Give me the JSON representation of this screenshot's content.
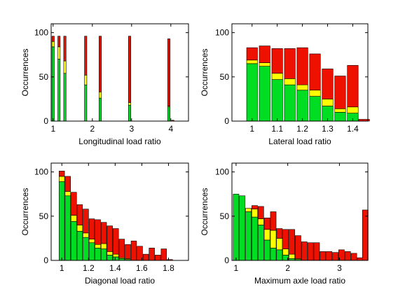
{
  "colors": {
    "green": "#00dd22",
    "yellow": "#ffff00",
    "red": "#ee1100",
    "edge": "#000000"
  },
  "chart_data": [
    {
      "type": "bar",
      "stacked": true,
      "xlabel": "Longitudinal load ratio",
      "ylabel": "Occurrences",
      "xlim": [
        0.95,
        4.45
      ],
      "ylim": [
        0,
        110
      ],
      "xticks": [
        1,
        2,
        3,
        4
      ],
      "yticks": [
        0,
        50,
        100
      ],
      "bar_width": 0.06,
      "x": [
        1.0,
        1.15,
        1.3,
        1.83,
        2.2,
        2.95,
        3.95,
        4.05
      ],
      "series": [
        {
          "color": "green",
          "values": [
            84,
            70,
            54,
            41,
            26,
            18,
            16,
            0
          ]
        },
        {
          "color": "yellow",
          "values": [
            6,
            14,
            14,
            11,
            7,
            3,
            1,
            0
          ]
        },
        {
          "color": "red",
          "values": [
            6,
            12,
            28,
            44,
            63,
            75,
            76,
            1
          ]
        }
      ]
    },
    {
      "type": "bar",
      "stacked": true,
      "xlabel": "Lateral load ratio",
      "ylabel": "Occurrences",
      "xlim": [
        0.92,
        1.46
      ],
      "ylim": [
        0,
        110
      ],
      "xticks": [
        1,
        1.1,
        1.2,
        1.3,
        1.4
      ],
      "xtick_labels": [
        "1",
        "1.1",
        "1.2",
        "1.3",
        "1.4"
      ],
      "yticks": [
        0,
        50,
        100
      ],
      "bar_width": 0.043,
      "x": [
        1.0,
        1.05,
        1.1,
        1.15,
        1.2,
        1.25,
        1.3,
        1.35,
        1.4,
        1.445
      ],
      "series": [
        {
          "color": "green",
          "values": [
            65,
            62,
            47,
            41,
            35,
            28,
            17,
            10,
            9,
            0
          ]
        },
        {
          "color": "yellow",
          "values": [
            4,
            4,
            7,
            7,
            6,
            7,
            8,
            4,
            7,
            0
          ]
        },
        {
          "color": "red",
          "values": [
            14,
            19,
            28,
            34,
            42,
            41,
            34,
            37,
            47,
            2
          ]
        }
      ]
    },
    {
      "type": "bar",
      "stacked": true,
      "xlabel": "Diagonal load ratio",
      "ylabel": "Occurrences",
      "xlim": [
        0.92,
        1.95
      ],
      "ylim": [
        0,
        110
      ],
      "xticks": [
        1,
        1.2,
        1.4,
        1.6,
        1.8
      ],
      "xtick_labels": [
        "1",
        "1.2",
        "1.4",
        "1.6",
        "1.8"
      ],
      "yticks": [
        0,
        50,
        100
      ],
      "bar_width": 0.041,
      "x": [
        1.0,
        1.045,
        1.09,
        1.135,
        1.18,
        1.225,
        1.27,
        1.315,
        1.36,
        1.405,
        1.45,
        1.495,
        1.54,
        1.585,
        1.63,
        1.675,
        1.72,
        1.765,
        1.81
      ],
      "series": [
        {
          "color": "green",
          "values": [
            89,
            73,
            44,
            33,
            26,
            20,
            14,
            13,
            6,
            4,
            2,
            1,
            0,
            0,
            0,
            0,
            0,
            0,
            0
          ]
        },
        {
          "color": "yellow",
          "values": [
            6,
            5,
            7,
            7,
            5,
            4,
            4,
            6,
            4,
            3,
            1,
            1,
            0,
            0,
            0,
            0,
            0,
            0,
            0
          ]
        },
        {
          "color": "red",
          "values": [
            6,
            17,
            26,
            23,
            27,
            23,
            28,
            24,
            29,
            29,
            21,
            16,
            22,
            16,
            7,
            14,
            6,
            13,
            1
          ]
        }
      ]
    },
    {
      "type": "bar",
      "stacked": true,
      "xlabel": "Maximum axle load ratio",
      "ylabel": "Occurrences",
      "xlim": [
        0.92,
        3.55
      ],
      "ylim": [
        0,
        110
      ],
      "xticks": [
        1,
        2,
        3
      ],
      "yticks": [
        0,
        50,
        100
      ],
      "bar_width": 0.11,
      "x": [
        1.0,
        1.12,
        1.24,
        1.36,
        1.48,
        1.6,
        1.72,
        1.84,
        1.96,
        2.08,
        2.2,
        2.32,
        2.44,
        2.56,
        2.68,
        2.8,
        2.92,
        3.04,
        3.16,
        3.28,
        3.4,
        3.5
      ],
      "series": [
        {
          "color": "green",
          "values": [
            75,
            73,
            55,
            49,
            40,
            23,
            14,
            12,
            6,
            2,
            1,
            0,
            0,
            0,
            0,
            0,
            0,
            0,
            0,
            0,
            0,
            0
          ]
        },
        {
          "color": "yellow",
          "values": [
            0,
            0,
            4,
            9,
            7,
            12,
            20,
            13,
            7,
            5,
            1,
            0,
            0,
            0,
            0,
            0,
            0,
            0,
            0,
            0,
            0,
            0
          ]
        },
        {
          "color": "red",
          "values": [
            0,
            0,
            0,
            4,
            14,
            13,
            21,
            11,
            22,
            28,
            26,
            21,
            20,
            20,
            10,
            10,
            9,
            12,
            10,
            8,
            3,
            57
          ]
        }
      ]
    }
  ]
}
